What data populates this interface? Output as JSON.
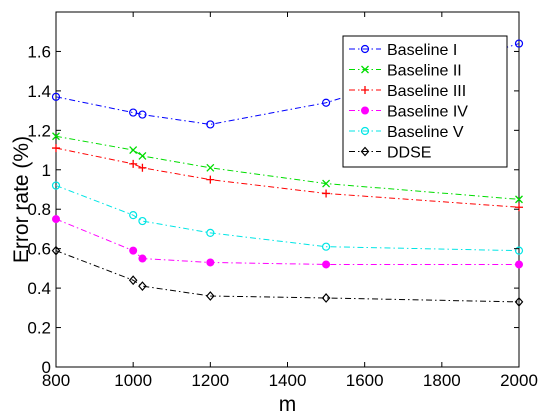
{
  "chart_data": {
    "type": "line",
    "title": "",
    "xlabel": "m",
    "ylabel": "Error rate (%)",
    "xlim": [
      800,
      2000
    ],
    "ylim": [
      0,
      1.8
    ],
    "x_ticks": [
      800,
      1000,
      1200,
      1400,
      1600,
      1800,
      2000
    ],
    "x_tick_labels": [
      "800",
      "1000",
      "1200",
      "1400",
      "1600",
      "1800",
      "2000"
    ],
    "y_ticks": [
      0,
      0.2,
      0.4,
      0.6,
      0.8,
      1,
      1.2,
      1.4,
      1.6
    ],
    "y_tick_labels": [
      "0",
      "0.2",
      "0.4",
      "0.6",
      "0.8",
      "1",
      "1.2",
      "1.4",
      "1.6"
    ],
    "grid": false,
    "legend_position": "top-right",
    "x": [
      800,
      1000,
      1024,
      1200,
      1500,
      2000
    ],
    "series": [
      {
        "name": "Baseline I",
        "color": "#0000ff",
        "marker": "circle-open",
        "values": [
          1.37,
          1.29,
          1.28,
          1.23,
          1.34,
          1.64
        ]
      },
      {
        "name": "Baseline II",
        "color": "#00dd00",
        "marker": "x",
        "values": [
          1.17,
          1.1,
          1.07,
          1.01,
          0.93,
          0.85
        ]
      },
      {
        "name": "Baseline III",
        "color": "#ff0000",
        "marker": "plus",
        "values": [
          1.11,
          1.03,
          1.01,
          0.95,
          0.88,
          0.81
        ]
      },
      {
        "name": "Baseline IV",
        "color": "#ff00ff",
        "marker": "circle-filled",
        "values": [
          0.75,
          0.59,
          0.55,
          0.53,
          0.52,
          0.52
        ]
      },
      {
        "name": "Baseline V",
        "color": "#00e5e5",
        "marker": "circle-open",
        "values": [
          0.92,
          0.77,
          0.74,
          0.68,
          0.61,
          0.59
        ]
      },
      {
        "name": "DDSE",
        "color": "#000000",
        "marker": "diamond-open",
        "values": [
          0.59,
          0.44,
          0.41,
          0.36,
          0.35,
          0.33
        ]
      }
    ]
  }
}
